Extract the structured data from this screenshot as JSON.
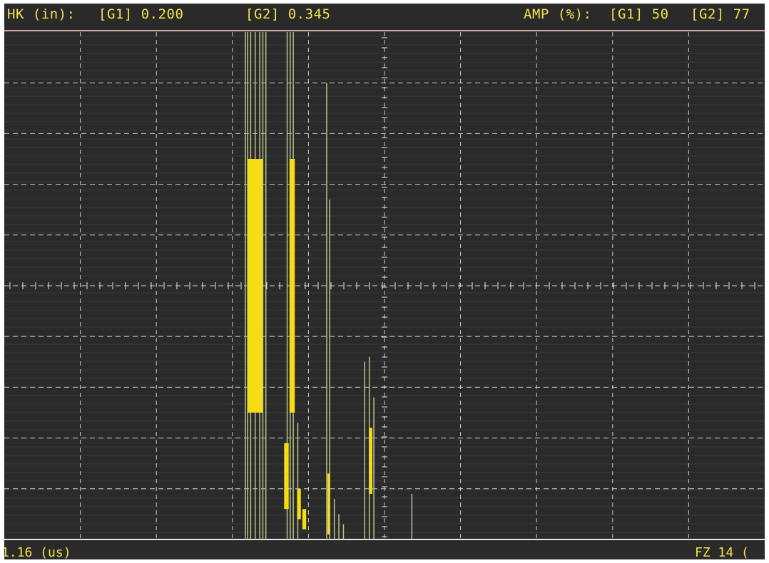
{
  "header": {
    "hk_label": "HK (in):",
    "gate1_depth": "[G1] 0.200",
    "gate2_depth": "[G2] 0.345",
    "amp_label": "AMP (%):",
    "gate1_amp": "[G1] 50",
    "gate2_amp": "[G2] 77"
  },
  "footer": {
    "range_label": "1.16 (us)",
    "right_label": "FZ 14 ("
  },
  "colors": {
    "background": "#2a2a2a",
    "grid": "#e6e6e6",
    "text": "#f0e24a",
    "signal_fill": "#f5dc14",
    "signal_trace": "#b9c28a",
    "header_rule": "#d9a8a8"
  },
  "chart_data": {
    "type": "ascan",
    "x_divisions": 10,
    "y_divisions": 10,
    "ylim": [
      0,
      100
    ],
    "xlim": [
      0,
      10
    ],
    "signal_fills": [
      {
        "x0": 3.2,
        "x1": 3.4,
        "y0": 25,
        "y1": 75
      },
      {
        "x0": 3.75,
        "x1": 3.82,
        "y0": 25,
        "y1": 75
      },
      {
        "x0": 3.68,
        "x1": 3.74,
        "y0": 6,
        "y1": 19
      },
      {
        "x0": 3.85,
        "x1": 3.9,
        "y0": 4,
        "y1": 10
      },
      {
        "x0": 3.92,
        "x1": 3.97,
        "y0": 2,
        "y1": 6
      },
      {
        "x0": 4.8,
        "x1": 4.84,
        "y0": 9,
        "y1": 22
      },
      {
        "x0": 4.25,
        "x1": 4.28,
        "y0": 1,
        "y1": 13
      }
    ],
    "signal_traces": [
      {
        "x": 3.17,
        "top": 100
      },
      {
        "x": 3.2,
        "top": 100
      },
      {
        "x": 3.24,
        "top": 100
      },
      {
        "x": 3.3,
        "top": 100
      },
      {
        "x": 3.36,
        "top": 100
      },
      {
        "x": 3.4,
        "top": 100
      },
      {
        "x": 3.44,
        "top": 100
      },
      {
        "x": 3.72,
        "top": 100
      },
      {
        "x": 3.76,
        "top": 100
      },
      {
        "x": 3.8,
        "top": 100
      },
      {
        "x": 3.86,
        "top": 23
      },
      {
        "x": 4.24,
        "top": 90
      },
      {
        "x": 4.28,
        "top": 67
      },
      {
        "x": 4.34,
        "top": 8
      },
      {
        "x": 4.4,
        "top": 5
      },
      {
        "x": 4.46,
        "top": 3
      },
      {
        "x": 4.74,
        "top": 35
      },
      {
        "x": 4.8,
        "top": 36
      },
      {
        "x": 4.86,
        "top": 28
      },
      {
        "x": 5.36,
        "top": 9
      }
    ]
  }
}
